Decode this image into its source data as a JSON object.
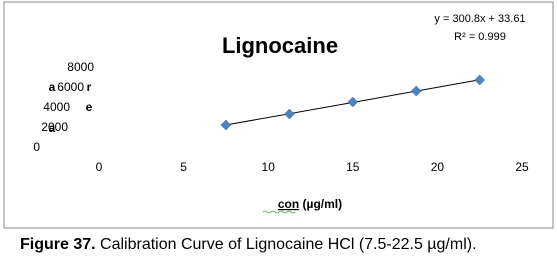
{
  "chart_data": {
    "type": "scatter",
    "title": "Lignocaine",
    "equation": "y = 300.8x + 33.61",
    "r_squared": "R² = 0.999",
    "x_label_underlined": "con",
    "x_label_rest": " (µg/ml)",
    "y_label_letters": [
      "a",
      "r",
      "e",
      "a"
    ],
    "series": [
      {
        "name": "area",
        "color": "#4f81bd",
        "x": [
          7.5,
          11.25,
          15,
          18.75,
          22.5
        ],
        "values": [
          2300,
          3400,
          4600,
          5700,
          6800
        ]
      }
    ],
    "trendline": true,
    "xlim": [
      0,
      25
    ],
    "xticks": [
      0,
      5,
      10,
      15,
      20,
      25
    ],
    "ylim": [
      0,
      8000
    ],
    "yticks": [
      0,
      2000,
      4000,
      6000,
      8000
    ]
  },
  "caption": {
    "label": "Figure 37.",
    "text": " Calibration Curve of Lignocaine HCl (7.5-22.5 µg/ml)."
  }
}
